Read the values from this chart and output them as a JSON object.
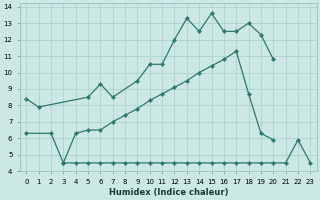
{
  "xlabel": "Humidex (Indice chaleur)",
  "background_color": "#cce8e4",
  "grid_color": "#aacfcb",
  "line_color": "#2d7a6a",
  "xlim": [
    -0.5,
    23.5
  ],
  "ylim": [
    4,
    14.2
  ],
  "xticks": [
    0,
    1,
    2,
    3,
    4,
    5,
    6,
    7,
    8,
    9,
    10,
    11,
    12,
    13,
    14,
    15,
    16,
    17,
    18,
    19,
    20,
    21,
    22,
    23
  ],
  "yticks": [
    4,
    5,
    6,
    7,
    8,
    9,
    10,
    11,
    12,
    13,
    14
  ],
  "series1_x": [
    0,
    1,
    5,
    6,
    7,
    9,
    10,
    11,
    12,
    13,
    14,
    15,
    16,
    17,
    18,
    19,
    20
  ],
  "series1_y": [
    8.4,
    7.9,
    8.5,
    9.3,
    8.5,
    9.5,
    10.5,
    10.5,
    12.0,
    13.3,
    12.5,
    13.6,
    12.5,
    12.5,
    13.0,
    12.3,
    10.8
  ],
  "series2_x": [
    0,
    2,
    3,
    4,
    5,
    6,
    7,
    8,
    9,
    10,
    11,
    12,
    13,
    14,
    15,
    16,
    17,
    18,
    19,
    20
  ],
  "series2_y": [
    6.3,
    6.3,
    4.5,
    6.3,
    6.5,
    6.5,
    7.0,
    7.4,
    7.8,
    8.3,
    8.7,
    9.1,
    9.5,
    10.0,
    10.4,
    10.8,
    11.3,
    8.7,
    6.3,
    5.9
  ],
  "series3_x": [
    3,
    4,
    5,
    6,
    7,
    8,
    9,
    10,
    11,
    12,
    13,
    14,
    15,
    16,
    17,
    18,
    19,
    20,
    21,
    22,
    23
  ],
  "series3_y": [
    4.5,
    4.5,
    4.5,
    4.5,
    4.5,
    4.5,
    4.5,
    4.5,
    4.5,
    4.5,
    4.5,
    4.5,
    4.5,
    4.5,
    4.5,
    4.5,
    4.5,
    4.5,
    4.5,
    5.9,
    4.5
  ]
}
